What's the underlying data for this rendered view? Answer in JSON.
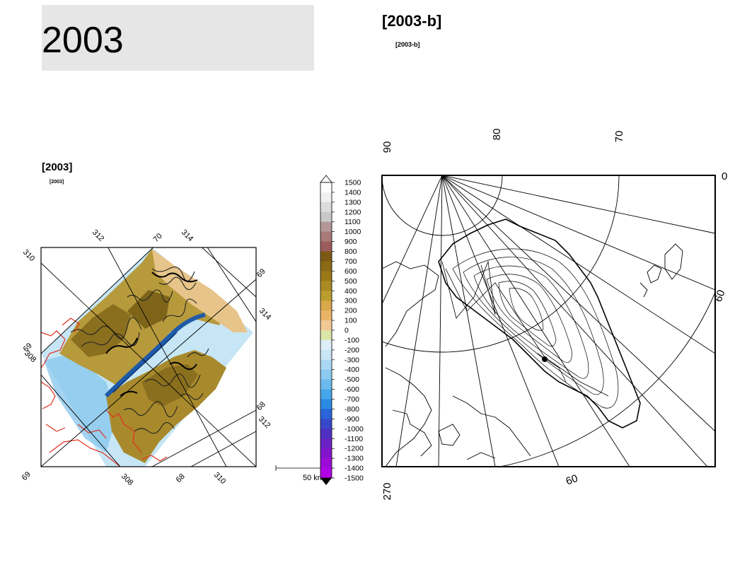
{
  "page": {
    "title": "2003"
  },
  "left_map": {
    "heading": "[2003]",
    "subheading": "[2003]",
    "lon_labels_top": [
      "310",
      "312",
      "70",
      "314"
    ],
    "lat_labels_right": [
      "69",
      "314",
      "68",
      "312"
    ],
    "labels_bottom": [
      "69",
      "308",
      "68",
      "310"
    ],
    "labels_left": [
      "308",
      "69"
    ],
    "scale_bar_label": "50 km",
    "colors": {
      "land_dark": "#8a6f1e",
      "land_mid": "#b79a3c",
      "land_light": "#e7c48a",
      "sea_light": "#c6e6f6",
      "sea_mid": "#7cc0ec",
      "fjord": "#1f5aa8",
      "coast_red": "#e03020"
    }
  },
  "colorbar": {
    "ticks": [
      "1500",
      "1400",
      "1300",
      "1200",
      "1100",
      "1000",
      "900",
      "800",
      "700",
      "600",
      "500",
      "400",
      "300",
      "200",
      "100",
      "0",
      "-100",
      "-200",
      "-300",
      "-400",
      "-500",
      "-600",
      "-700",
      "-800",
      "-900",
      "-1000",
      "-1100",
      "-1200",
      "-1300",
      "-1400",
      "-1500"
    ],
    "colors": [
      "#ffffff",
      "#f0f0f0",
      "#dcdcdc",
      "#c8c8c8",
      "#b49898",
      "#a87a7a",
      "#9c5c5c",
      "#7a5a14",
      "#8a6a14",
      "#9a7818",
      "#aa8a22",
      "#bb9c2e",
      "#d8a84a",
      "#eab468",
      "#f2c894",
      "#dbe6a8",
      "#ddeef8",
      "#c8e6f6",
      "#aad8f4",
      "#8ccaf0",
      "#6cbaee",
      "#46a6ea",
      "#2a8ae4",
      "#2a64d8",
      "#3848cc",
      "#5030c0",
      "#6a22c4",
      "#8414cc",
      "#9c0cd8",
      "#b000e6"
    ]
  },
  "right_map": {
    "heading": "[2003-b]",
    "subheading": "[2003-b]",
    "top_labels": [
      "90",
      "80",
      "70"
    ],
    "right_labels": [
      "0",
      "60"
    ],
    "bottom_labels": [
      "270",
      "60"
    ]
  }
}
